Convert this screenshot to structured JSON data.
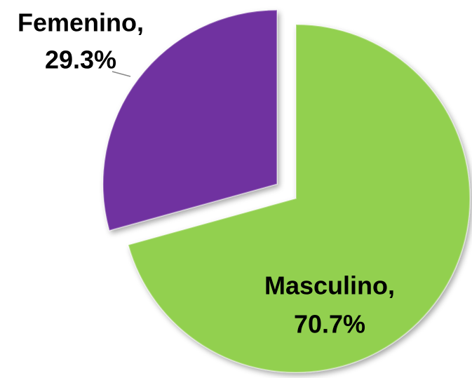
{
  "chart_data": {
    "type": "pie",
    "categories": [
      "Masculino,",
      "Femenino,"
    ],
    "values": [
      70.7,
      29.3
    ],
    "value_labels": [
      "70.7%",
      "29.3%"
    ],
    "colors": [
      "#92d050",
      "#7030a0"
    ],
    "exploded": [
      false,
      true
    ]
  }
}
